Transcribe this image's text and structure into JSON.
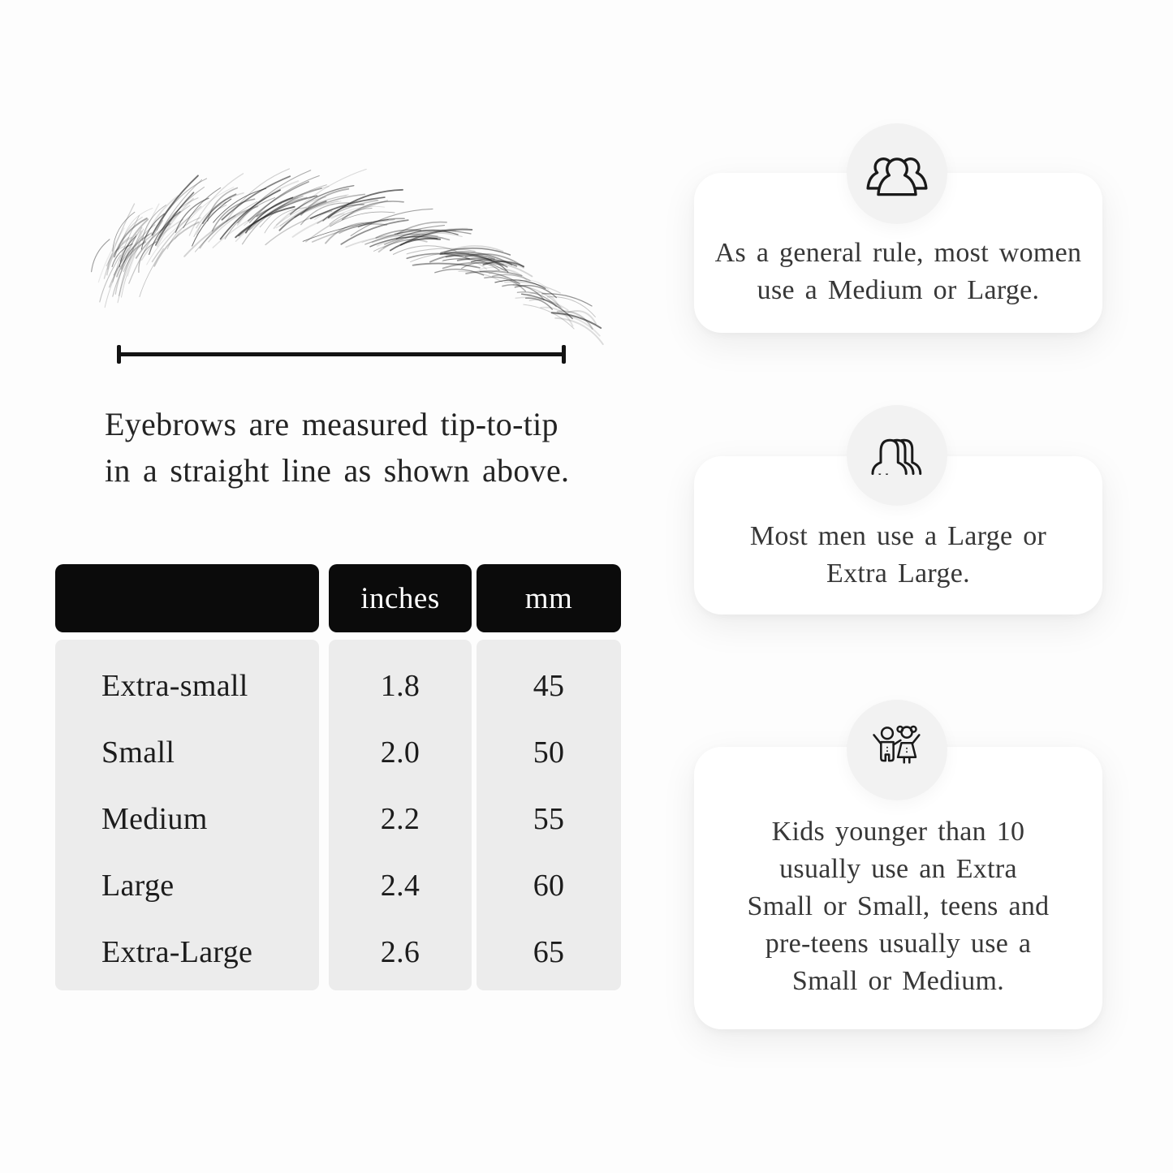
{
  "page": {
    "background": "#fdfdfd",
    "text_color": "#1f1f1f"
  },
  "measurement_figure": {
    "illustration": "eyebrow-sketch",
    "caption_lines": [
      "Eyebrows are measured tip-to-tip",
      "in a straight line as shown above."
    ]
  },
  "size_table": {
    "columns": [
      "",
      "inches",
      "mm"
    ],
    "rows": [
      {
        "size": "Extra-small",
        "inches": "1.8",
        "mm": "45"
      },
      {
        "size": "Small",
        "inches": "2.0",
        "mm": "50"
      },
      {
        "size": "Medium",
        "inches": "2.2",
        "mm": "55"
      },
      {
        "size": "Large",
        "inches": "2.4",
        "mm": "60"
      },
      {
        "size": "Extra-Large",
        "inches": "2.6",
        "mm": "65"
      }
    ],
    "colors": {
      "header_bg": "#0b0b0b",
      "header_text": "#ffffff",
      "body_bg": "#ececec"
    }
  },
  "cards": [
    {
      "icon": "women-group-icon",
      "lines": [
        "As a general rule, most women",
        "use a Medium or Large."
      ]
    },
    {
      "icon": "men-group-icon",
      "lines": [
        "Most men use a Large or",
        "Extra Large."
      ]
    },
    {
      "icon": "children-icon",
      "lines": [
        "Kids younger than 10",
        "usually use an Extra",
        "Small or Small, teens and",
        "pre-teens usually use a",
        "Small or Medium."
      ]
    }
  ],
  "colors": {
    "card_bg": "#ffffff",
    "badge_bg": "#f2f2f2",
    "line_color": "#131313"
  }
}
